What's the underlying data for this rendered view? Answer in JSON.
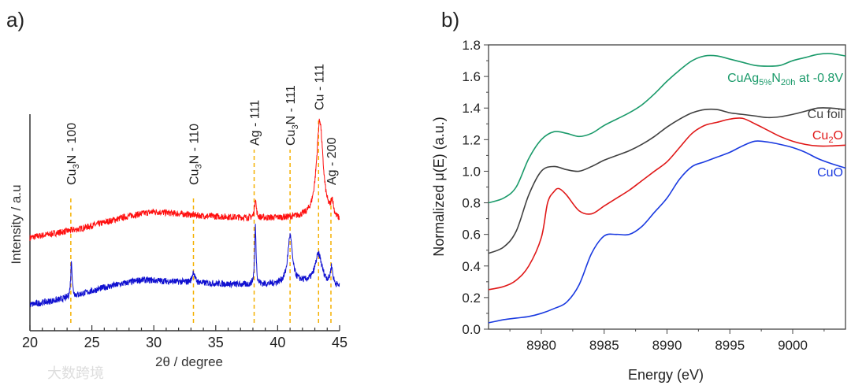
{
  "watermark": "大数跨境",
  "chart_data": [
    {
      "panel": "a)",
      "type": "line",
      "xlabel": "2θ / degree",
      "ylabel": "Intensity / a.u",
      "xlim": [
        20,
        45
      ],
      "ylim": [
        0,
        100
      ],
      "xticks": [
        "20",
        "25",
        "30",
        "35",
        "40",
        "45"
      ],
      "reference_lines": [
        {
          "x": 23.3,
          "pre": "Cu",
          "sub": "3",
          "post": "N - 100"
        },
        {
          "x": 33.2,
          "pre": "Cu",
          "sub": "3",
          "post": "N - 110"
        },
        {
          "x": 38.1,
          "pre": "Ag - 111",
          "sub": "",
          "post": ""
        },
        {
          "x": 41.0,
          "pre": "Cu",
          "sub": "3",
          "post": "N - 111"
        },
        {
          "x": 43.3,
          "pre": "Cu - 111",
          "sub": "",
          "post": ""
        },
        {
          "x": 44.3,
          "pre": "Ag - 200",
          "sub": "",
          "post": ""
        }
      ],
      "series": [
        {
          "name": "red",
          "color": "#ff1010",
          "baseline": [
            [
              20,
              43
            ],
            [
              24,
              47
            ],
            [
              28,
              53
            ],
            [
              30,
              55
            ],
            [
              34,
              53
            ],
            [
              38,
              52
            ],
            [
              42,
              52
            ],
            [
              45,
              50
            ]
          ],
          "peaks": [
            [
              38.2,
              9,
              0.08
            ],
            [
              43.4,
              46,
              0.32
            ],
            [
              44.4,
              7,
              0.12
            ]
          ]
        },
        {
          "name": "blue",
          "color": "#1010d0",
          "baseline": [
            [
              20,
              12
            ],
            [
              23,
              15
            ],
            [
              26,
              20
            ],
            [
              29,
              23.5
            ],
            [
              34,
              22
            ],
            [
              38,
              21
            ],
            [
              40,
              21.5
            ],
            [
              42,
              22
            ],
            [
              45,
              20
            ]
          ],
          "peaks": [
            [
              23.35,
              17,
              0.07
            ],
            [
              33.2,
              5,
              0.12
            ],
            [
              38.2,
              27,
              0.07
            ],
            [
              41.0,
              22,
              0.22
            ],
            [
              43.3,
              14,
              0.35
            ],
            [
              44.35,
              8,
              0.12
            ]
          ]
        }
      ]
    },
    {
      "panel": "b)",
      "type": "line",
      "xlabel": "Energy (eV)",
      "ylabel": "Normalized μ(E) (a.u.)",
      "xlim": [
        8975.8,
        9004.2
      ],
      "ylim": [
        0,
        1.8
      ],
      "xticks": [
        8980,
        8985,
        8990,
        8995,
        9000
      ],
      "yticks": [
        "0.0",
        "0.2",
        "0.4",
        "0.6",
        "0.8",
        "1.0",
        "1.2",
        "1.4",
        "1.6",
        "1.8"
      ],
      "series": [
        {
          "name": "CuAg5%N20h at -0.8V",
          "label_pre": "CuAg",
          "label_sub1": "5%",
          "label_mid": "N",
          "label_sub2": "20h",
          "label_post": " at -0.8V",
          "color": "#1a9a6a",
          "x": [
            8975.8,
            8977,
            8978,
            8979,
            8980,
            8981,
            8982,
            8983,
            8984,
            8985,
            8986,
            8987,
            8988,
            8989,
            8990,
            8991,
            8992,
            8993,
            8994,
            8995,
            8996,
            8997,
            8998,
            8999,
            9000,
            9001,
            9002,
            9003,
            9004.2
          ],
          "y": [
            0.8,
            0.83,
            0.9,
            1.08,
            1.2,
            1.25,
            1.24,
            1.22,
            1.24,
            1.29,
            1.33,
            1.37,
            1.42,
            1.49,
            1.57,
            1.64,
            1.7,
            1.73,
            1.73,
            1.71,
            1.69,
            1.67,
            1.665,
            1.67,
            1.7,
            1.72,
            1.74,
            1.745,
            1.73
          ]
        },
        {
          "name": "Cu foil",
          "label_pre": "Cu foil",
          "color": "#404040",
          "x": [
            8975.8,
            8977,
            8978,
            8979,
            8980,
            8981,
            8982,
            8983,
            8984,
            8985,
            8986,
            8987,
            8988,
            8989,
            8990,
            8991,
            8992,
            8993,
            8994,
            8995,
            8996,
            8997,
            8998,
            8999,
            9000,
            9001,
            9002,
            9003,
            9004.2
          ],
          "y": [
            0.48,
            0.52,
            0.62,
            0.85,
            1.0,
            1.03,
            1.01,
            1.0,
            1.03,
            1.07,
            1.1,
            1.13,
            1.17,
            1.22,
            1.28,
            1.33,
            1.37,
            1.39,
            1.39,
            1.37,
            1.36,
            1.35,
            1.34,
            1.345,
            1.36,
            1.38,
            1.4,
            1.4,
            1.39
          ]
        },
        {
          "name": "Cu2O",
          "label_pre": "Cu",
          "label_sub1": "2",
          "label_mid": "O",
          "color": "#e01818",
          "x": [
            8975.8,
            8977,
            8978,
            8979,
            8980,
            8980.5,
            8981,
            8981.4,
            8982,
            8983,
            8984,
            8985,
            8986,
            8987,
            8988,
            8989,
            8990,
            8991,
            8992,
            8993,
            8994,
            8995,
            8996,
            8997,
            8998,
            8999,
            9000,
            9001,
            9002,
            9003,
            9004.2
          ],
          "y": [
            0.25,
            0.27,
            0.31,
            0.4,
            0.58,
            0.8,
            0.87,
            0.89,
            0.85,
            0.75,
            0.73,
            0.78,
            0.83,
            0.88,
            0.94,
            1.0,
            1.06,
            1.15,
            1.24,
            1.29,
            1.31,
            1.33,
            1.335,
            1.3,
            1.26,
            1.22,
            1.19,
            1.17,
            1.16,
            1.16,
            1.165
          ]
        },
        {
          "name": "CuO",
          "label_pre": "CuO",
          "color": "#1a3ae0",
          "x": [
            8975.8,
            8977,
            8978,
            8979,
            8980,
            8981,
            8982,
            8983,
            8984,
            8985,
            8986,
            8987,
            8988,
            8989,
            8990,
            8991,
            8992,
            8993,
            8994,
            8995,
            8996,
            8997,
            8998,
            8999,
            9000,
            9001,
            9002,
            9003,
            9004.2
          ],
          "y": [
            0.04,
            0.06,
            0.07,
            0.08,
            0.1,
            0.13,
            0.17,
            0.28,
            0.48,
            0.59,
            0.6,
            0.6,
            0.65,
            0.74,
            0.83,
            0.95,
            1.03,
            1.06,
            1.09,
            1.12,
            1.16,
            1.19,
            1.185,
            1.17,
            1.15,
            1.12,
            1.08,
            1.05,
            1.02
          ]
        }
      ]
    }
  ]
}
